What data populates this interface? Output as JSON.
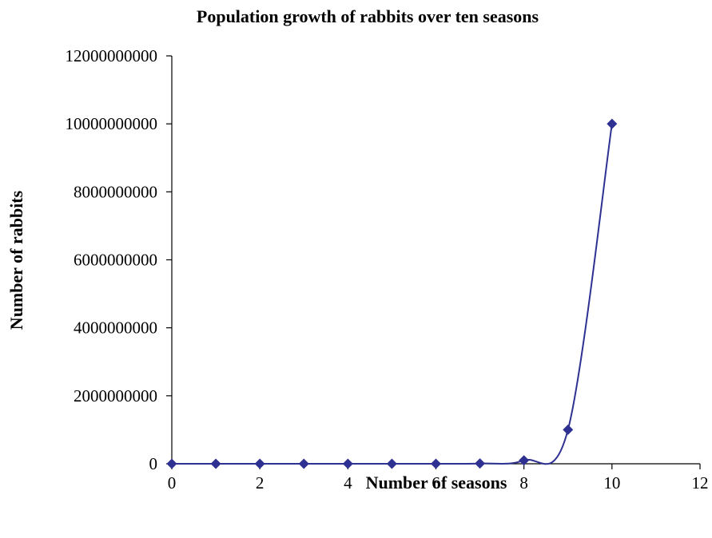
{
  "chart_data": {
    "type": "line",
    "title": "Population growth of rabbits over ten seasons",
    "xlabel": "Number of seasons",
    "ylabel": "Number of  rabbits",
    "xlim": [
      0,
      12
    ],
    "ylim": [
      0,
      12000000000
    ],
    "x_ticks": [
      "0",
      "2",
      "4",
      "6",
      "8",
      "10",
      "12"
    ],
    "y_ticks": [
      "0",
      "2000000000",
      "4000000000",
      "6000000000",
      "8000000000",
      "10000000000",
      "12000000000"
    ],
    "grid": false,
    "legend": "none",
    "smoothed": true,
    "marker": "diamond",
    "series_color": "#2e3192",
    "series": [
      {
        "x": [
          0,
          1,
          2,
          3,
          4,
          5,
          6,
          7,
          8,
          9,
          10
        ],
        "values": [
          1,
          10,
          100,
          1000,
          10000,
          100000,
          1000000,
          10000000,
          100000000,
          1000000000,
          10000000000
        ]
      }
    ]
  }
}
